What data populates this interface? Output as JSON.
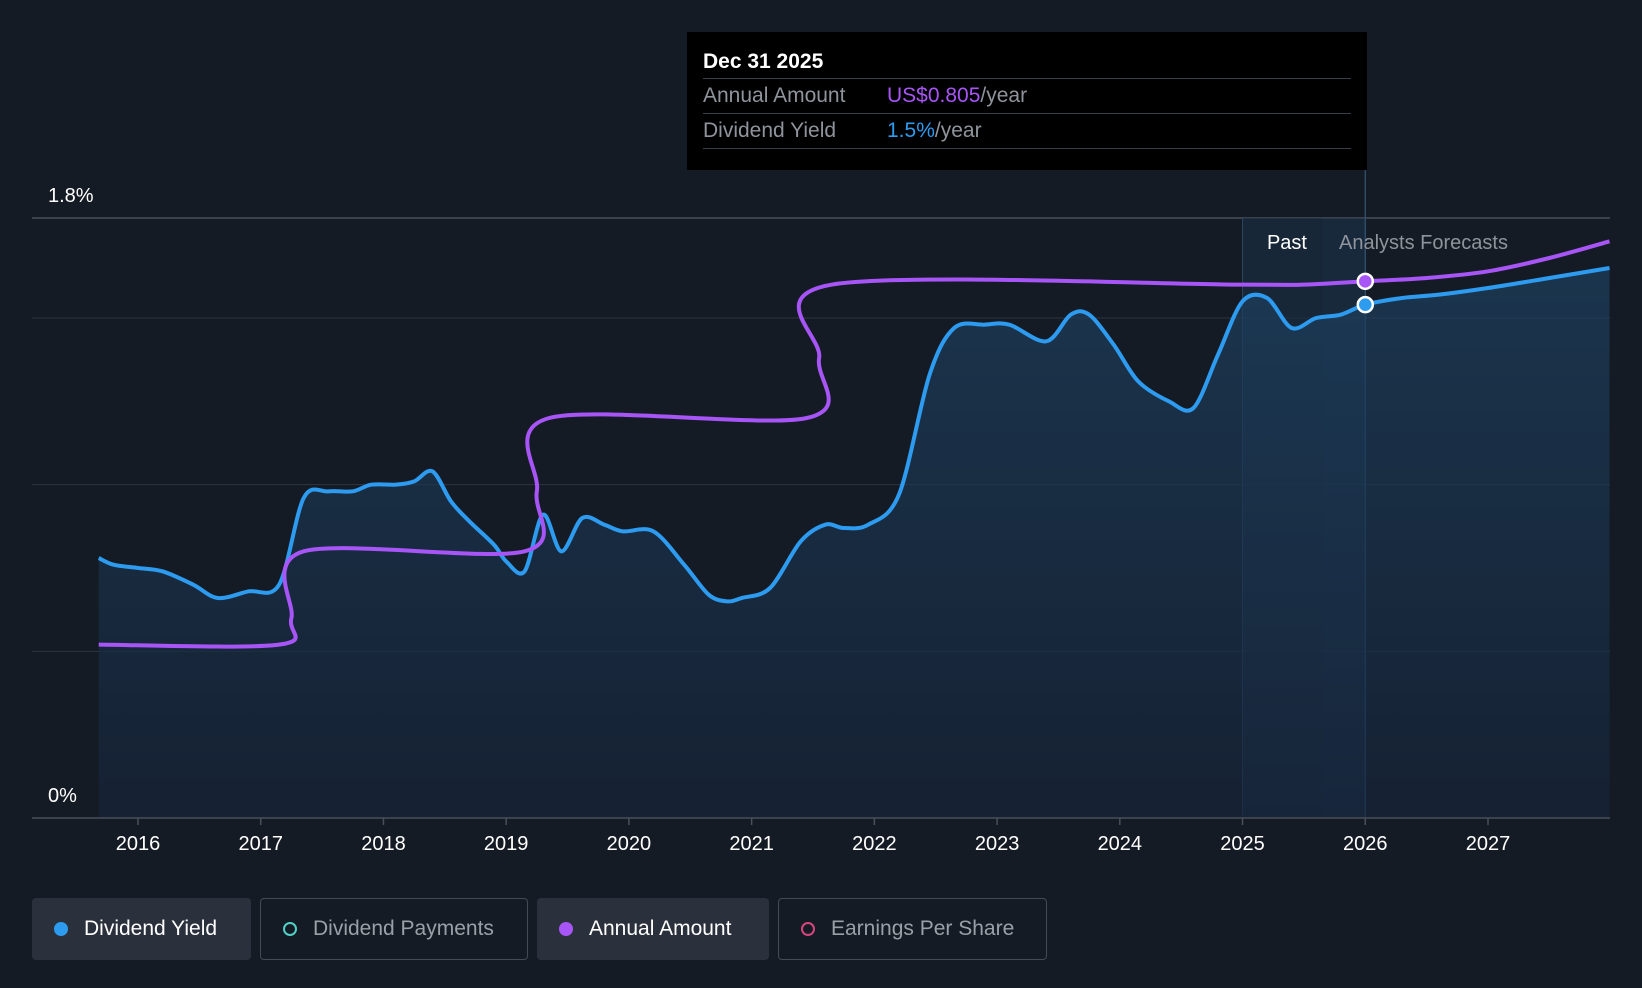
{
  "chart_data": {
    "type": "line",
    "y_axis": {
      "top_label": "1.8%",
      "bottom_label": "0%",
      "ylim": [
        0,
        1.8
      ]
    },
    "x_ticks": [
      "2016",
      "2017",
      "2018",
      "2019",
      "2020",
      "2021",
      "2022",
      "2023",
      "2024",
      "2025",
      "2026",
      "2027"
    ],
    "xlim": [
      2015.6,
      2027.99
    ],
    "grid": true,
    "regions": {
      "past_label": "Past",
      "forecast_label": "Analysts Forecasts",
      "past_start": 2025.0,
      "forecast_start": 2025.65
    },
    "cursor_x": 2026.0,
    "series": [
      {
        "name": "Dividend Yield",
        "color": "#2d9bf0",
        "x": [
          2015.68,
          2015.8,
          2016.0,
          2016.2,
          2016.45,
          2016.65,
          2016.9,
          2017.15,
          2017.35,
          2017.55,
          2017.75,
          2017.9,
          2018.1,
          2018.25,
          2018.4,
          2018.55,
          2018.7,
          2018.9,
          2019.0,
          2019.15,
          2019.3,
          2019.45,
          2019.62,
          2019.8,
          2019.95,
          2020.2,
          2020.45,
          2020.65,
          2020.8,
          2020.92,
          2021.15,
          2021.4,
          2021.6,
          2021.75,
          2021.95,
          2022.2,
          2022.45,
          2022.65,
          2022.9,
          2023.1,
          2023.4,
          2023.6,
          2023.75,
          2023.95,
          2024.15,
          2024.4,
          2024.6,
          2024.8,
          2025.0,
          2025.2,
          2025.4,
          2025.6,
          2025.8,
          2026.0,
          2026.3,
          2026.6,
          2027.0,
          2027.5,
          2027.99
        ],
        "values": [
          0.78,
          0.76,
          0.75,
          0.74,
          0.7,
          0.66,
          0.68,
          0.7,
          0.96,
          0.98,
          0.98,
          1.0,
          1.0,
          1.01,
          1.04,
          0.95,
          0.89,
          0.82,
          0.77,
          0.74,
          0.91,
          0.8,
          0.9,
          0.88,
          0.86,
          0.86,
          0.76,
          0.67,
          0.65,
          0.66,
          0.69,
          0.83,
          0.88,
          0.87,
          0.88,
          0.97,
          1.33,
          1.47,
          1.48,
          1.48,
          1.43,
          1.51,
          1.51,
          1.42,
          1.31,
          1.25,
          1.23,
          1.39,
          1.55,
          1.56,
          1.47,
          1.5,
          1.51,
          1.54,
          1.56,
          1.57,
          1.59,
          1.62,
          1.65
        ]
      },
      {
        "name": "Annual Amount",
        "color": "#a855f7",
        "x": [
          2015.68,
          2017.15,
          2017.25,
          2017.35,
          2019.15,
          2019.25,
          2019.35,
          2021.45,
          2021.55,
          2021.65,
          2025.0,
          2025.5,
          2026.0,
          2026.5,
          2027.0,
          2027.5,
          2027.99
        ],
        "values": [
          0.52,
          0.52,
          0.6,
          0.8,
          0.8,
          0.98,
          1.2,
          1.2,
          1.38,
          1.6,
          1.6,
          1.6,
          1.61,
          1.62,
          1.64,
          1.68,
          1.73
        ]
      }
    ],
    "tooltip": {
      "date": "Dec 31 2025",
      "rows": [
        {
          "label": "Annual Amount",
          "value": "US$0.805",
          "unit": "/year",
          "color": "#a855f7"
        },
        {
          "label": "Dividend Yield",
          "value": "1.5%",
          "unit": "/year",
          "color": "#2d9bf0"
        }
      ]
    }
  },
  "legend": [
    {
      "label": "Dividend Yield",
      "color": "#2d9bf0",
      "active": true,
      "filled": true
    },
    {
      "label": "Dividend Payments",
      "color": "#4fd1c5",
      "active": false,
      "filled": false
    },
    {
      "label": "Annual Amount",
      "color": "#a855f7",
      "active": true,
      "filled": true
    },
    {
      "label": "Earnings Per Share",
      "color": "#d6457d",
      "active": false,
      "filled": false
    }
  ]
}
